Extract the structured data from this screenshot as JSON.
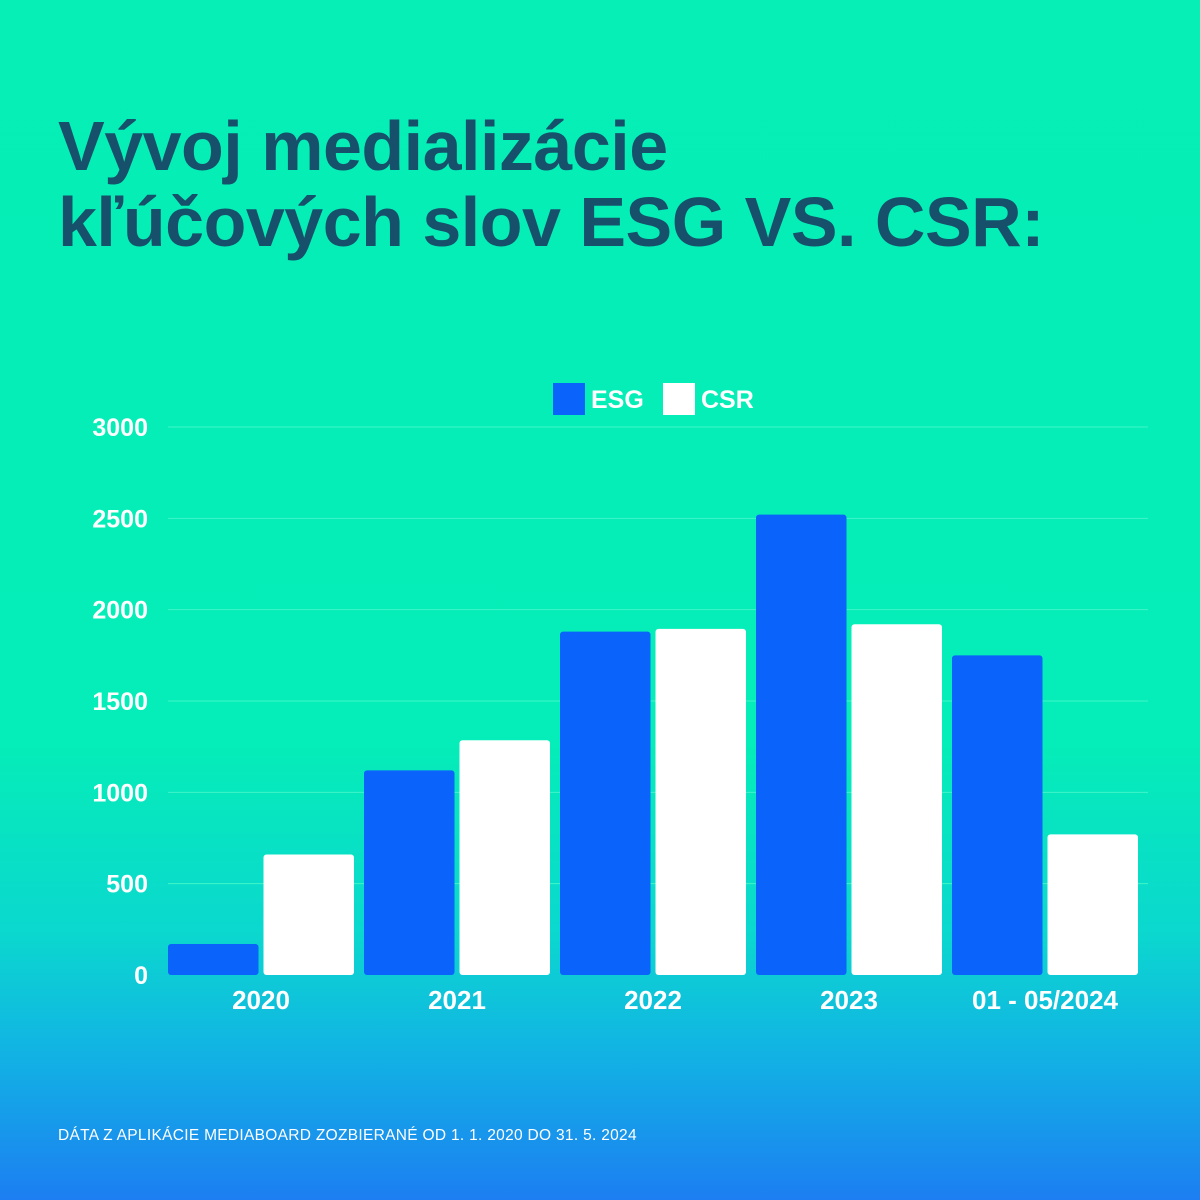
{
  "title": {
    "line1": "Vývoj medializácie",
    "line2": "kľúčových slov ESG VS. CSR:"
  },
  "footnote": "DÁTA Z APLIKÁCIE MEDIABOARD ZOZBIERANÉ OD 1. 1. 2020 DO 31. 5. 2024",
  "colors": {
    "title": "#17506b",
    "esg": "#0a63fb",
    "csr": "#ffffff",
    "gridline": "#3ff5c8"
  },
  "chart_data": {
    "type": "bar",
    "title": "Vývoj medializácie kľúčových slov ESG VS. CSR:",
    "xlabel": "",
    "ylabel": "",
    "ylim": [
      0,
      3000
    ],
    "yticks": [
      0,
      500,
      1000,
      1500,
      2000,
      2500,
      3000
    ],
    "grid": true,
    "legend_position": "top-center",
    "categories": [
      "2020",
      "2021",
      "2022",
      "2023",
      "01 - 05/2024"
    ],
    "series": [
      {
        "name": "ESG",
        "color": "#0a63fb",
        "values": [
          170,
          1120,
          1880,
          2520,
          1750
        ]
      },
      {
        "name": "CSR",
        "color": "#ffffff",
        "values": [
          660,
          1285,
          1895,
          1920,
          770
        ]
      }
    ]
  }
}
